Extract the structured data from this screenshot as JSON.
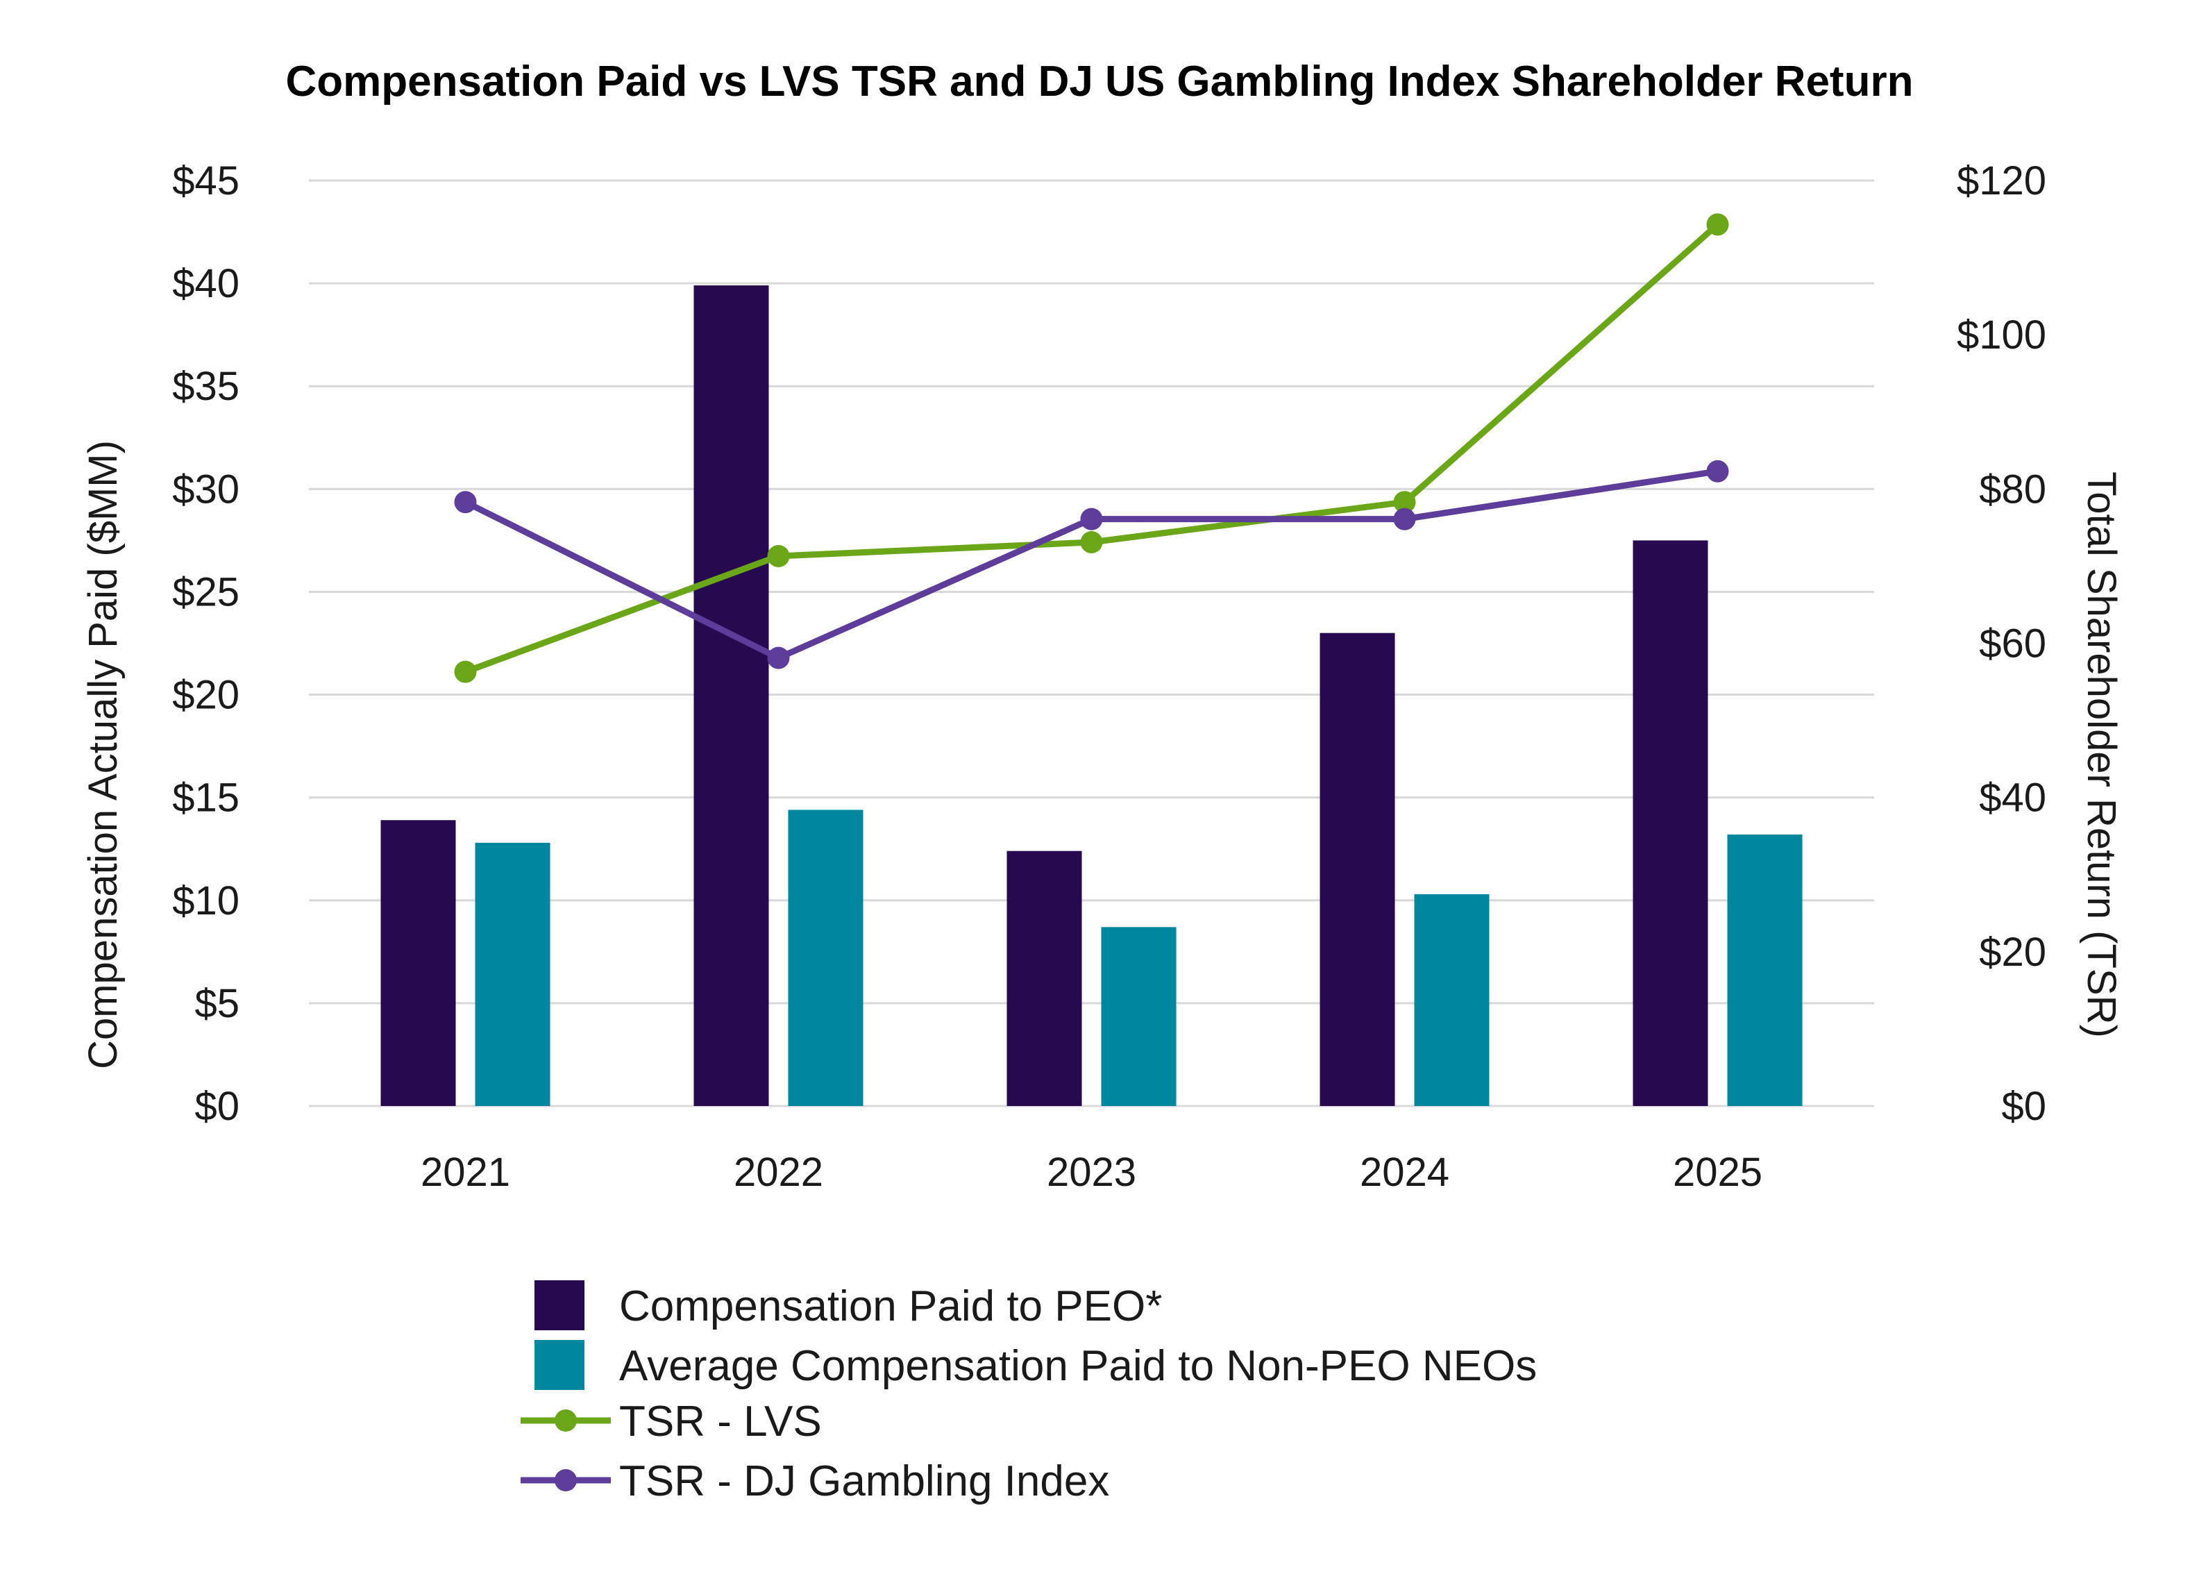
{
  "chart_data": {
    "type": "bar",
    "title": "Compensation Paid vs LVS TSR and DJ US Gambling Index Shareholder Return",
    "categories": [
      "2021",
      "2022",
      "2023",
      "2024",
      "2025"
    ],
    "ylabel": "Compensation Actually Paid ($MM)",
    "ylabel_right": "Total Shareholder Return (TSR)",
    "ylim": [
      0,
      45
    ],
    "ylim_right": [
      0,
      120
    ],
    "yticks": [
      0,
      5,
      10,
      15,
      20,
      25,
      30,
      35,
      40,
      45
    ],
    "ytick_labels": [
      "$0",
      "$5",
      "$10",
      "$15",
      "$20",
      "$25",
      "$30",
      "$35",
      "$40",
      "$45"
    ],
    "yticks_right": [
      0,
      20,
      40,
      60,
      80,
      100,
      120
    ],
    "ytick_labels_right": [
      "$0",
      "$20",
      "$40",
      "$60",
      "$80",
      "$100",
      "$120"
    ],
    "grid": true,
    "legend_position": "bottom",
    "series": [
      {
        "name": "Compensation Paid to PEO*",
        "kind": "bar",
        "axis": "left",
        "color": "#26094f",
        "values": [
          13.9,
          39.9,
          12.4,
          23.0,
          27.5
        ]
      },
      {
        "name": "Average Compensation Paid to Non-PEO NEOs",
        "kind": "bar",
        "axis": "left",
        "color": "#00879f",
        "values": [
          12.8,
          14.4,
          8.7,
          10.3,
          13.2
        ]
      },
      {
        "name": "TSR - LVS",
        "kind": "line",
        "axis": "right",
        "color": "#6aa618",
        "values": [
          56.3,
          71.3,
          73.1,
          78.3,
          114.3
        ]
      },
      {
        "name": "TSR - DJ Gambling Index",
        "kind": "line",
        "axis": "right",
        "color": "#5e3c99",
        "values": [
          78.3,
          58.1,
          76.1,
          76.1,
          82.3
        ]
      }
    ]
  }
}
